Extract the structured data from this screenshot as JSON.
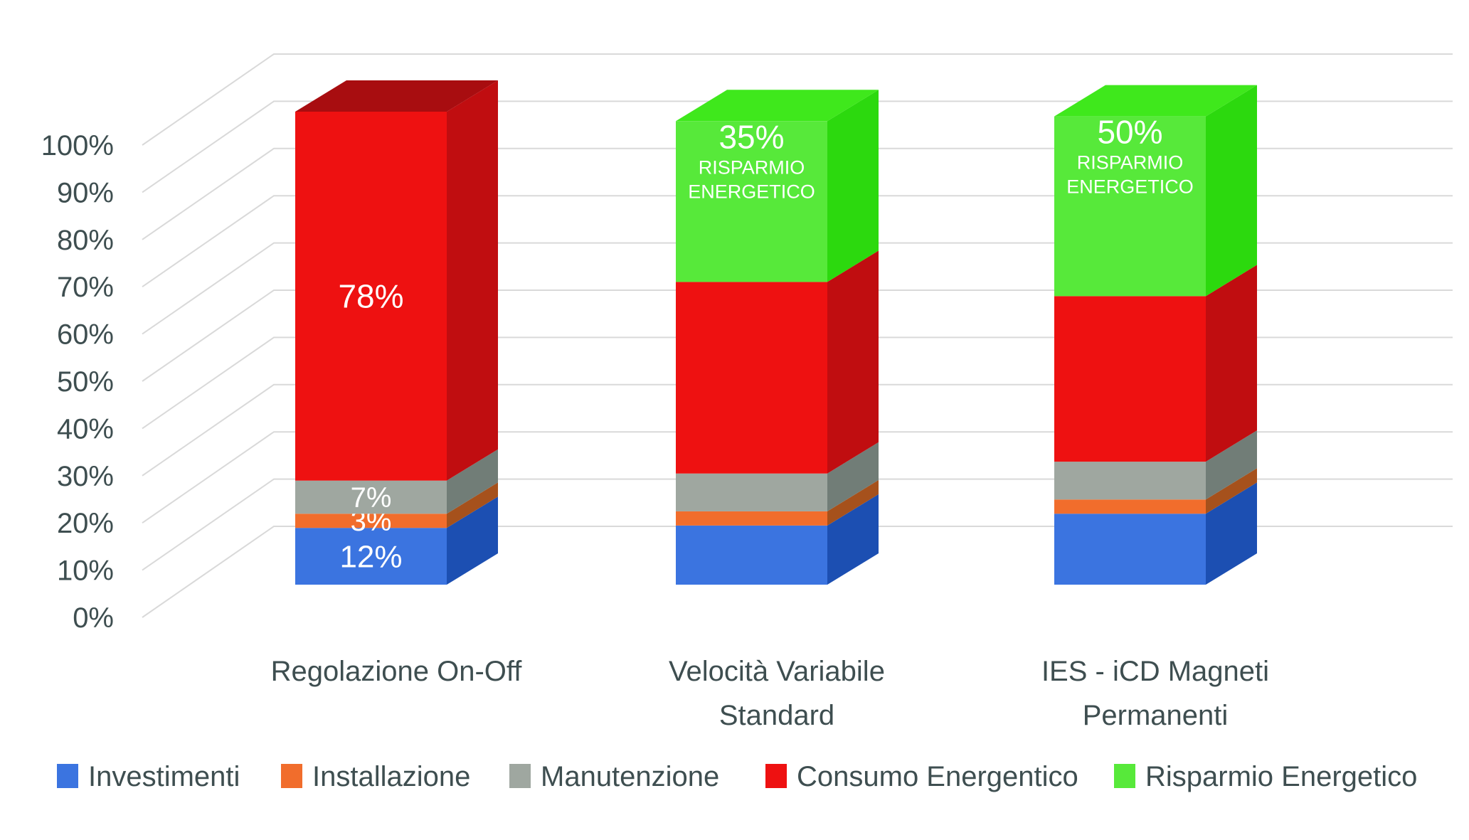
{
  "chart_data": {
    "type": "bar",
    "variant": "3d-stacked-percent-column",
    "title": "",
    "xlabel": "",
    "ylabel": "",
    "categories": [
      "Regolazione On-Off",
      "Velocità Variabile\nStandard",
      "IES - iCD Magneti\nPermanenti"
    ],
    "y_ticks": [
      "0%",
      "10%",
      "20%",
      "30%",
      "40%",
      "50%",
      "60%",
      "70%",
      "80%",
      "90%",
      "100%"
    ],
    "ylim": [
      0,
      100
    ],
    "grid": true,
    "legend_position": "bottom",
    "series": [
      {
        "name": "Investimenti",
        "color": "#3B74E0",
        "side_color": "#1C4FB2",
        "values": [
          12,
          12.5,
          15
        ]
      },
      {
        "name": "Installazione",
        "color": "#F16D2C",
        "side_color": "#A6511C",
        "values": [
          3,
          3,
          3
        ]
      },
      {
        "name": "Manutenzione",
        "color": "#9FA7A0",
        "side_color": "#717D77",
        "values": [
          7,
          8,
          8
        ]
      },
      {
        "name": "Consumo Energentico",
        "color": "#EE1111",
        "side_color": "#C00D10",
        "top_color": "#A80D10",
        "values": [
          78,
          40.5,
          35
        ]
      },
      {
        "name": "Risparmio Energetico",
        "color": "#57E93A",
        "side_color": "#2CD90E",
        "top_color": "#3FE81C",
        "values": [
          0,
          34,
          38
        ]
      }
    ],
    "segment_labels": [
      [
        "12%",
        "3%",
        "7%",
        "78%",
        ""
      ],
      [
        "",
        "",
        "",
        "",
        "35%\nRISPARMIO\nENERGETICO"
      ],
      [
        "",
        "",
        "",
        "",
        "50%\nRISPARMIO\nENERGETICO"
      ]
    ]
  },
  "legend": {
    "items": [
      {
        "label": "Investimenti",
        "color": "#3B74E0"
      },
      {
        "label": "Installazione",
        "color": "#F16D2C"
      },
      {
        "label": "Manutenzione",
        "color": "#9FA7A0"
      },
      {
        "label": "Consumo Energentico",
        "color": "#EE1111"
      },
      {
        "label": "Risparmio Energetico",
        "color": "#57E93A"
      }
    ]
  },
  "colors": {
    "text": "#3E4E50",
    "gridline": "#D9D9D9",
    "background": "#FFFFFF",
    "segment_label_text": "#FFFFFF"
  }
}
